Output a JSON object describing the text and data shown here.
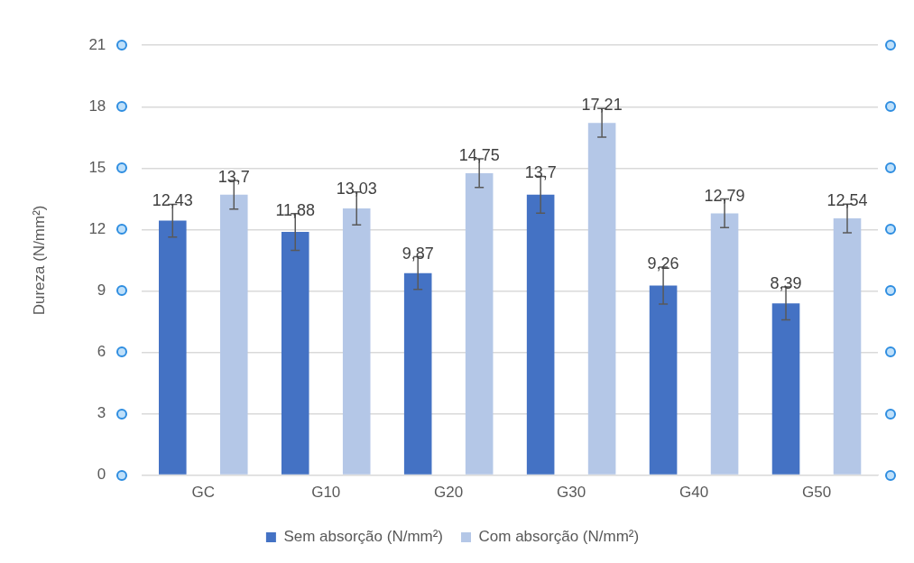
{
  "chart_data": {
    "type": "bar",
    "ylabel": "Dureza (N/mm²)",
    "categories": [
      "GC",
      "G10",
      "G20",
      "G30",
      "G40",
      "G50"
    ],
    "series": [
      {
        "name": "Sem absorção (N/mm²)",
        "color": "#4472c4",
        "values": [
          12.43,
          11.88,
          9.87,
          13.7,
          9.26,
          8.39
        ],
        "errors": [
          0.8,
          0.9,
          0.8,
          0.9,
          0.9,
          0.8
        ],
        "value_labels": [
          "12,43",
          "11,88",
          "9,87",
          "13,7",
          "9,26",
          "8,39"
        ]
      },
      {
        "name": "Com absorção (N/mm²)",
        "color": "#b4c7e7",
        "values": [
          13.7,
          13.03,
          14.75,
          17.21,
          12.79,
          12.54
        ],
        "errors": [
          0.7,
          0.8,
          0.7,
          0.7,
          0.7,
          0.7
        ],
        "value_labels": [
          "13,7",
          "13,03",
          "14,75",
          "17,21",
          "12,79",
          "12,54"
        ]
      }
    ],
    "ylim": [
      0,
      21
    ],
    "yticks": [
      0,
      3,
      6,
      9,
      12,
      15,
      18,
      21
    ],
    "grid": "y",
    "legend": "bottom"
  }
}
